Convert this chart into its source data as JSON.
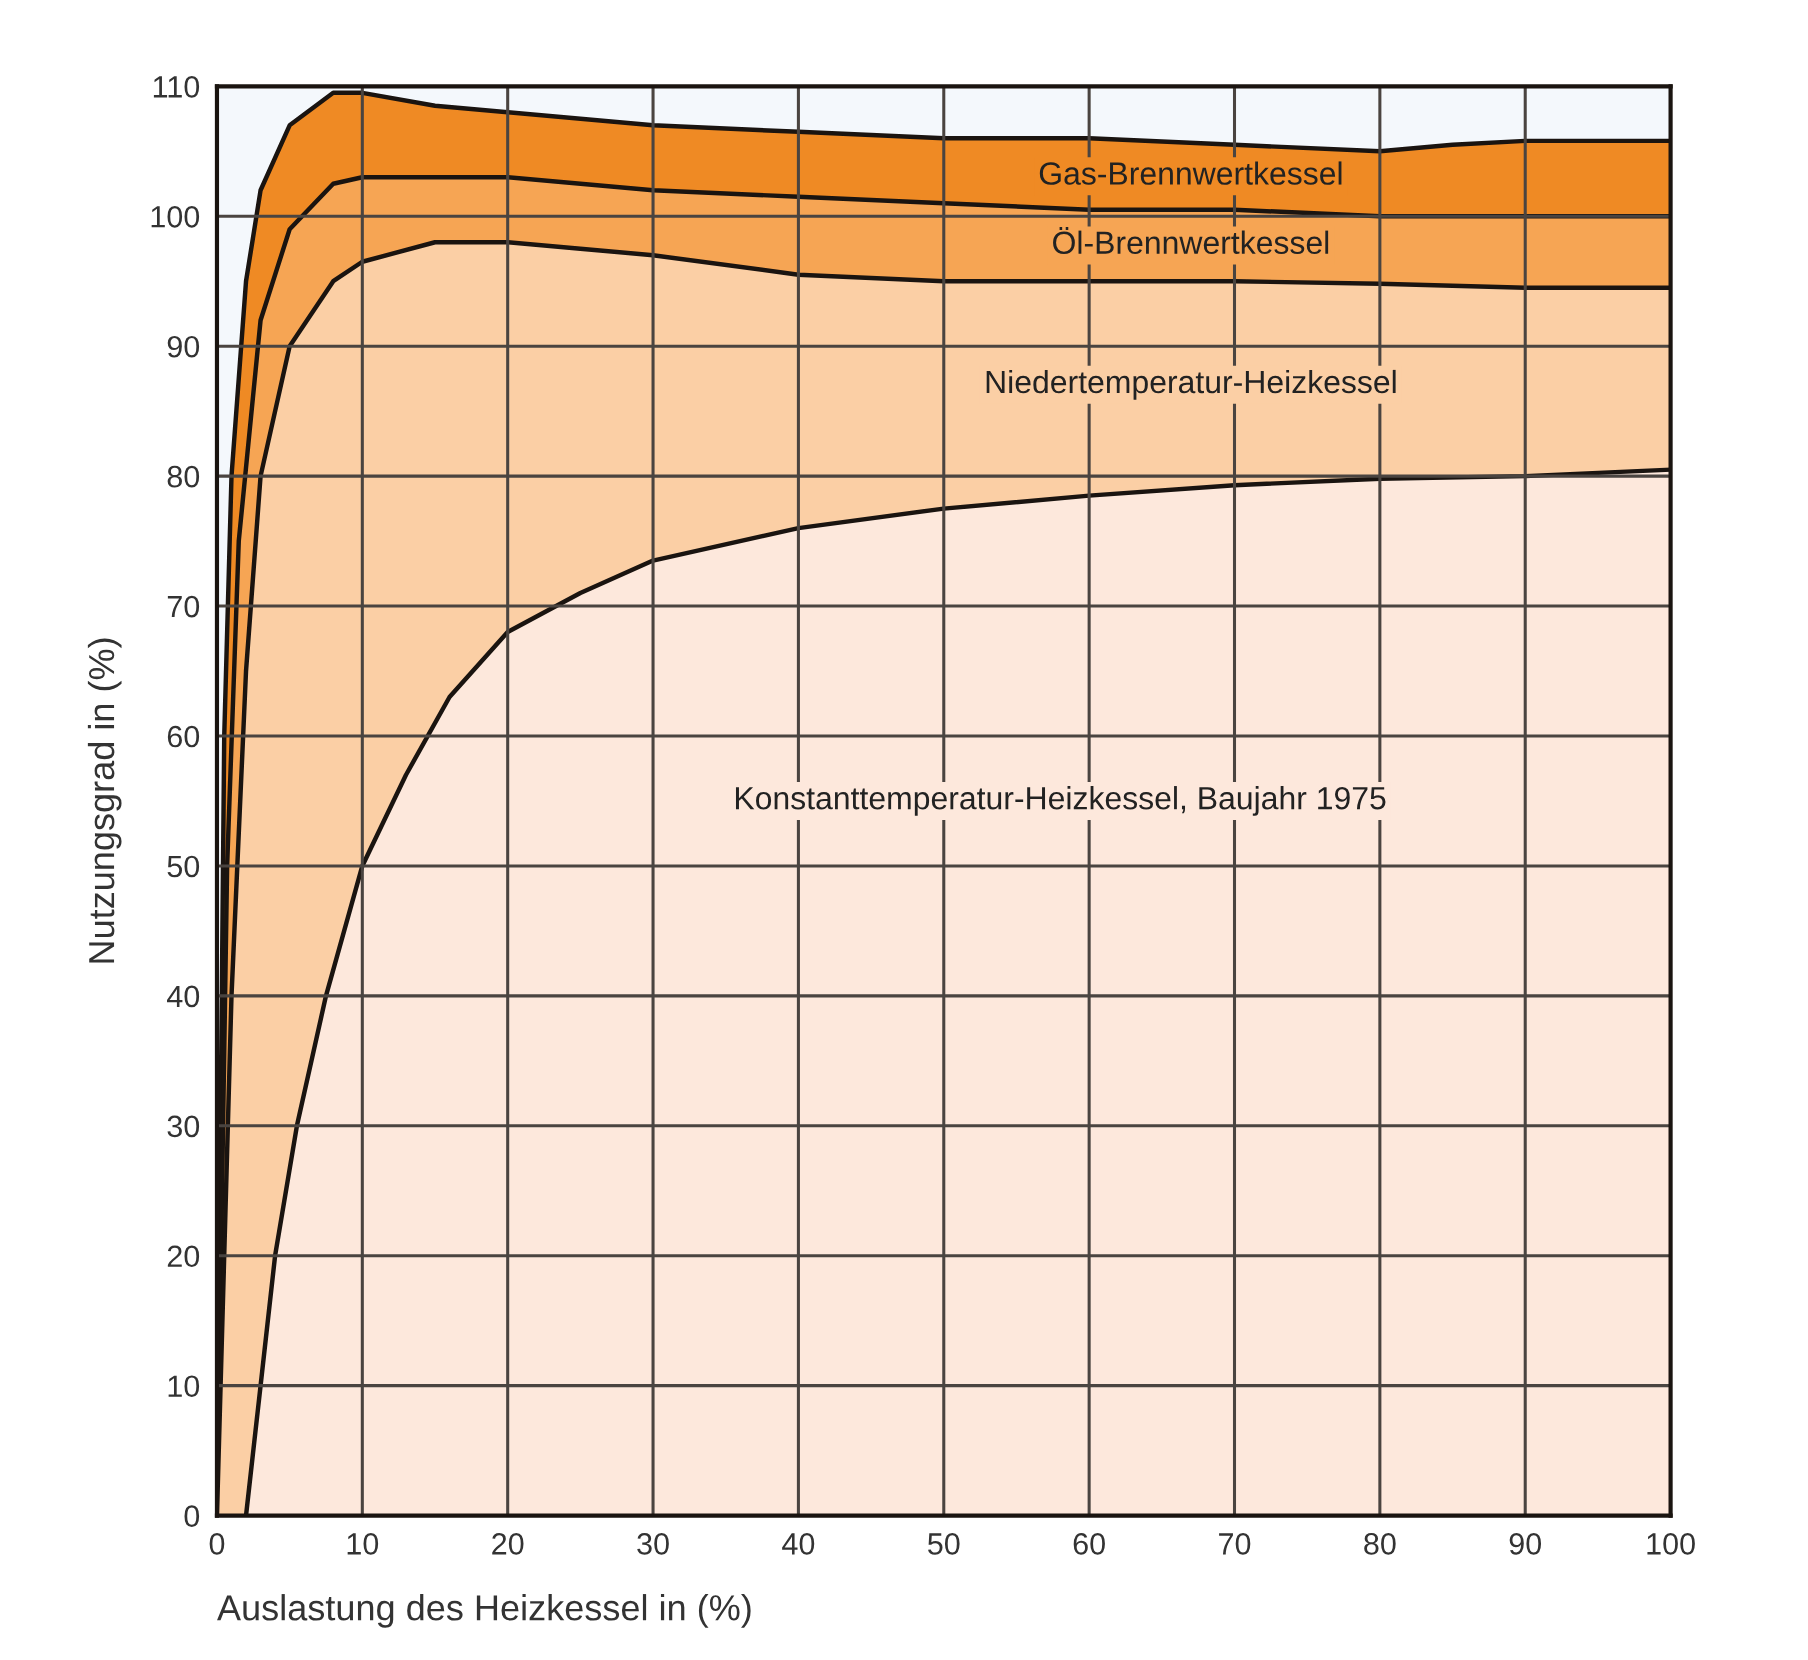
{
  "chart_data": {
    "type": "area",
    "xlabel": "Auslastung des Heizkessel in (%)",
    "ylabel": "Nutzungsgrad in (%)",
    "xlim": [
      0,
      100
    ],
    "ylim": [
      0,
      110
    ],
    "xticks": [
      0,
      10,
      20,
      30,
      40,
      50,
      60,
      70,
      80,
      90,
      100
    ],
    "yticks": [
      0,
      10,
      20,
      30,
      40,
      50,
      60,
      70,
      80,
      90,
      100,
      110
    ],
    "grid": true,
    "series": [
      {
        "name": "Gas-Brennwertkessel",
        "color": "#ef8a24",
        "x": [
          0,
          0.5,
          1,
          2,
          3,
          5,
          8,
          10,
          15,
          20,
          30,
          40,
          50,
          60,
          70,
          80,
          85,
          90,
          100
        ],
        "values": [
          0,
          60,
          80,
          95,
          102,
          107,
          109.5,
          109.5,
          108.5,
          108,
          107,
          106.5,
          106,
          106,
          105.5,
          105,
          105.5,
          105.8,
          105.8
        ]
      },
      {
        "name": "Öl-Brennwertkessel",
        "color": "#f6a554",
        "x": [
          0,
          0.7,
          1.5,
          3,
          5,
          8,
          10,
          15,
          20,
          30,
          40,
          50,
          60,
          70,
          80,
          90,
          100
        ],
        "values": [
          0,
          50,
          75,
          92,
          99,
          102.5,
          103,
          103,
          103,
          102,
          101.5,
          101,
          100.5,
          100.5,
          100,
          100,
          100
        ]
      },
      {
        "name": "Niedertemperatur-Heizkessel",
        "color": "#fbcfa5",
        "x": [
          0,
          1,
          2,
          3,
          5,
          8,
          10,
          15,
          20,
          25,
          30,
          40,
          50,
          60,
          70,
          80,
          90,
          100
        ],
        "values": [
          0,
          40,
          65,
          80,
          90,
          95,
          96.5,
          98,
          98,
          97.5,
          97,
          95.5,
          95,
          95,
          95,
          94.8,
          94.5,
          94.5
        ]
      },
      {
        "name": "Konstanttemperatur-Heizkessel, Baujahr 1975",
        "color": "#fde8dc",
        "x": [
          2,
          3,
          4,
          5.5,
          7.5,
          10,
          13,
          16,
          20,
          25,
          30,
          40,
          50,
          60,
          70,
          80,
          90,
          100
        ],
        "values": [
          0,
          10,
          20,
          30,
          40,
          50,
          57,
          63,
          68,
          71,
          73.5,
          76,
          77.5,
          78.5,
          79.3,
          79.8,
          80,
          80.5
        ]
      }
    ]
  }
}
